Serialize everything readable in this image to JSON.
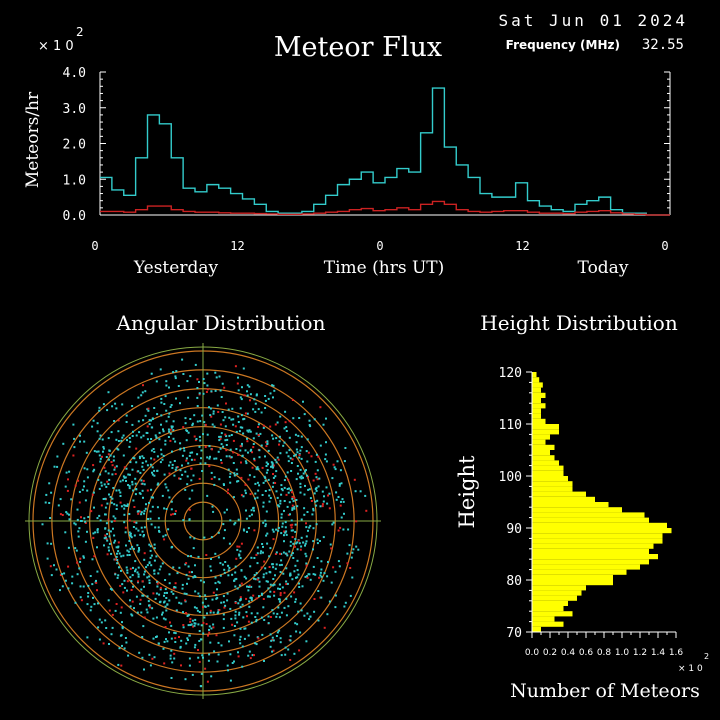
{
  "header": {
    "date": "Sat Jun 01 2024",
    "title": "Meteor Flux",
    "frequency_label": "Frequency (MHz)",
    "frequency_value": "32.55",
    "multiplier": "× 1 0",
    "multiplier_exp": "2"
  },
  "flux": {
    "ylabel": "Meteors/hr",
    "ytick_labels": [
      "4.0",
      "3.0",
      "2.0",
      "1.0",
      "0.0"
    ],
    "xtick_labels": [
      "0",
      "12",
      "0",
      "12",
      "0"
    ],
    "label_yesterday": "Yesterday",
    "label_time": "Time (hrs UT)",
    "label_today": "Today"
  },
  "angular": {
    "title": "Angular Distribution"
  },
  "height": {
    "title": "Height Distribution",
    "ylabel": "Height",
    "ytick_labels": [
      "120",
      "110",
      "100",
      "90",
      "80",
      "70"
    ],
    "xtick_labels": [
      "0.0",
      "0.2",
      "0.4",
      "0.6",
      "0.8",
      "1.0",
      "1.2",
      "1.4",
      "1.6"
    ],
    "xlabel": "Number of Meteors",
    "multiplier": "× 1 0",
    "multiplier_exp": "2"
  },
  "chart_data": [
    {
      "type": "line",
      "title": "Meteor Flux",
      "ylabel": "Meteors/hr (×100)",
      "xlabel": "Time (hrs UT)",
      "xlim": [
        0,
        48
      ],
      "ylim": [
        0,
        4.0
      ],
      "colors": {
        "blue": "#33cccc",
        "red": "#cc2222"
      },
      "series": [
        {
          "name": "",
          "color": "#33cccc",
          "values": [
            1.05,
            0.7,
            0.55,
            1.6,
            2.8,
            2.55,
            1.6,
            0.75,
            0.65,
            0.85,
            0.75,
            0.6,
            0.45,
            0.3,
            0.1,
            0.05,
            0.05,
            0.1,
            0.3,
            0.55,
            0.85,
            1.0,
            1.2,
            0.9,
            1.05,
            1.3,
            1.2,
            2.3,
            3.55,
            1.9,
            1.4,
            1.05,
            0.6,
            0.5,
            0.5,
            0.9,
            0.4,
            0.25,
            0.15,
            0.1,
            0.3,
            0.4,
            0.5,
            0.15,
            0.05,
            0.05,
            0.0,
            0.0
          ]
        },
        {
          "name": "",
          "color": "#cc2222",
          "values": [
            0.1,
            0.1,
            0.08,
            0.15,
            0.25,
            0.25,
            0.15,
            0.1,
            0.08,
            0.08,
            0.06,
            0.05,
            0.05,
            0.04,
            0.03,
            0.02,
            0.02,
            0.03,
            0.05,
            0.08,
            0.1,
            0.15,
            0.18,
            0.12,
            0.15,
            0.2,
            0.15,
            0.3,
            0.38,
            0.3,
            0.15,
            0.1,
            0.08,
            0.1,
            0.12,
            0.12,
            0.08,
            0.05,
            0.05,
            0.04,
            0.08,
            0.1,
            0.12,
            0.06,
            0.03,
            0.02,
            0.0,
            0.0
          ]
        }
      ]
    },
    {
      "type": "scatter",
      "title": "Angular Distribution",
      "ring_count": 9,
      "colors": {
        "points": "#33cccc",
        "points_secondary": "#dd2222",
        "rings": "#cc7722",
        "axes": "#88aa44"
      }
    },
    {
      "type": "bar",
      "orientation": "horizontal",
      "title": "Height Distribution",
      "ylabel": "Height",
      "xlabel": "Number of Meteors (×100)",
      "ylim": [
        70,
        120
      ],
      "xlim": [
        0,
        1.6
      ],
      "bar_color": "#ffff00",
      "heights": [
        71,
        72,
        73,
        74,
        75,
        76,
        77,
        78,
        79,
        80,
        81,
        82,
        83,
        84,
        85,
        86,
        87,
        88,
        89,
        90,
        91,
        92,
        93,
        94,
        95,
        96,
        97,
        98,
        99,
        100,
        101,
        102,
        103,
        104,
        105,
        106,
        107,
        108,
        109,
        110,
        111,
        112,
        113,
        114,
        115,
        116,
        117,
        118,
        119,
        120
      ],
      "values": [
        0.1,
        0.35,
        0.25,
        0.45,
        0.35,
        0.4,
        0.5,
        0.55,
        0.6,
        0.9,
        0.9,
        1.05,
        1.2,
        1.3,
        1.4,
        1.3,
        1.35,
        1.45,
        1.45,
        1.55,
        1.5,
        1.3,
        1.25,
        1.0,
        0.85,
        0.7,
        0.6,
        0.45,
        0.45,
        0.4,
        0.35,
        0.35,
        0.3,
        0.25,
        0.2,
        0.25,
        0.15,
        0.2,
        0.3,
        0.3,
        0.15,
        0.1,
        0.1,
        0.15,
        0.1,
        0.15,
        0.1,
        0.12,
        0.08,
        0.05
      ]
    }
  ]
}
